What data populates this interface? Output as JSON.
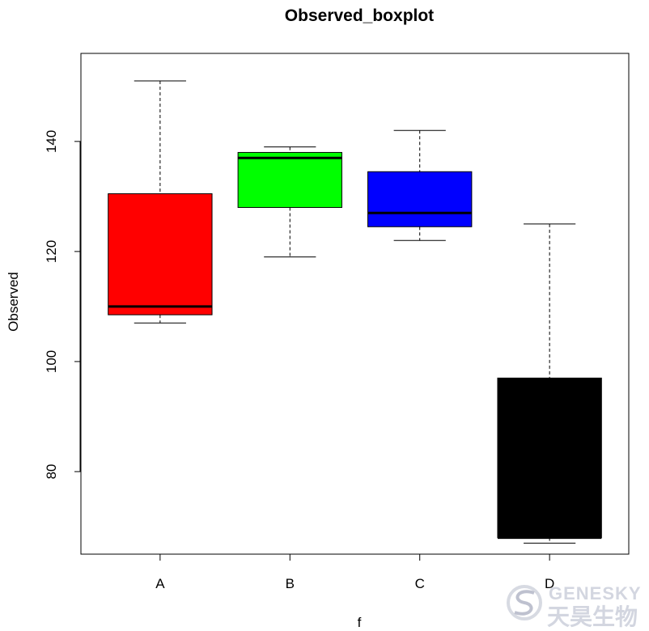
{
  "chart_data": {
    "type": "boxplot",
    "title": "Observed_boxplot",
    "xlabel": "f",
    "ylabel": "Observed",
    "categories": [
      "A",
      "B",
      "C",
      "D"
    ],
    "colors": [
      "#ff0000",
      "#00ff00",
      "#0000ff",
      "#000000"
    ],
    "boxes": [
      {
        "name": "A",
        "min": 107,
        "q1": 108.5,
        "median": 110,
        "q3": 130.5,
        "max": 151
      },
      {
        "name": "B",
        "min": 119,
        "q1": 128,
        "median": 137,
        "q3": 138,
        "max": 139
      },
      {
        "name": "C",
        "min": 122,
        "q1": 124.5,
        "median": 127,
        "q3": 134.5,
        "max": 142
      },
      {
        "name": "D",
        "min": 67,
        "q1": 68,
        "median": 68,
        "q3": 97,
        "max": 125
      }
    ],
    "yticks": [
      80,
      100,
      120,
      140
    ],
    "ylim": [
      65,
      156
    ],
    "grid": false,
    "legend": "none"
  },
  "watermark": {
    "latin": "GENESKY",
    "cjk": "天昊生物"
  }
}
